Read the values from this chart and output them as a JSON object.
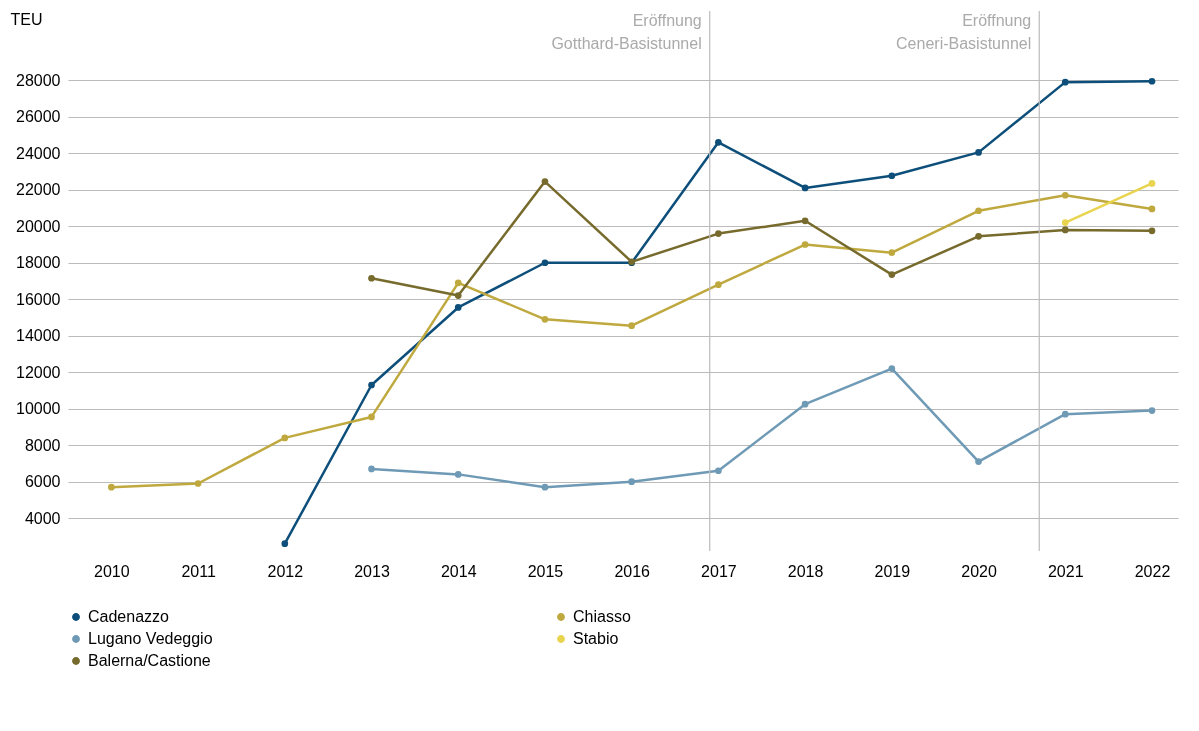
{
  "chart_data": {
    "type": "line",
    "ylabel": "TEU",
    "x": [
      2010,
      2011,
      2012,
      2013,
      2014,
      2015,
      2016,
      2017,
      2018,
      2019,
      2020,
      2021,
      2022
    ],
    "xlim": [
      2009.5,
      2022.3
    ],
    "xticks": [
      2010,
      2011,
      2012,
      2013,
      2014,
      2015,
      2016,
      2017,
      2018,
      2019,
      2020,
      2021,
      2022
    ],
    "ylim": [
      2200,
      31800
    ],
    "yticks": [
      4000,
      6000,
      8000,
      10000,
      12000,
      14000,
      16000,
      18000,
      20000,
      22000,
      24000,
      26000,
      28000
    ],
    "grid": "y",
    "legend": "bottom",
    "marker": "circle",
    "line_style": "solid",
    "series": [
      {
        "name": "Cadenazzo",
        "color": "#0d4f7a",
        "values": [
          null,
          null,
          2600,
          11300,
          15550,
          18000,
          18000,
          24600,
          22100,
          22770,
          24050,
          27900,
          27950
        ]
      },
      {
        "name": "Chiasso",
        "color": "#bfa93f",
        "values": [
          5700,
          5900,
          8400,
          9550,
          16900,
          14900,
          14550,
          16800,
          19000,
          18550,
          20850,
          21700,
          20950
        ]
      },
      {
        "name": "Lugano Vedeggio",
        "color": "#6f9ab5",
        "values": [
          null,
          null,
          null,
          6700,
          6400,
          5700,
          6000,
          6600,
          10250,
          12200,
          7100,
          9700,
          9900
        ]
      },
      {
        "name": "Stabio",
        "color": "#e8d44f",
        "values": [
          null,
          null,
          null,
          null,
          null,
          null,
          null,
          null,
          null,
          null,
          null,
          20200,
          22350
        ]
      },
      {
        "name": "Balerna/Castione",
        "color": "#766a2c",
        "values": [
          null,
          null,
          null,
          17150,
          16200,
          22450,
          18050,
          19600,
          20300,
          17350,
          19450,
          19800,
          19750
        ]
      }
    ],
    "ref_lines": [
      {
        "axis": "x",
        "value": 2016.9,
        "label": "Eröffnung\nGotthard-Basistunnel",
        "color": "#bbbbbb"
      },
      {
        "axis": "x",
        "value": 2020.7,
        "label": "Eröffnung\nCeneri-Basistunnel",
        "color": "#bbbbbb"
      }
    ]
  }
}
